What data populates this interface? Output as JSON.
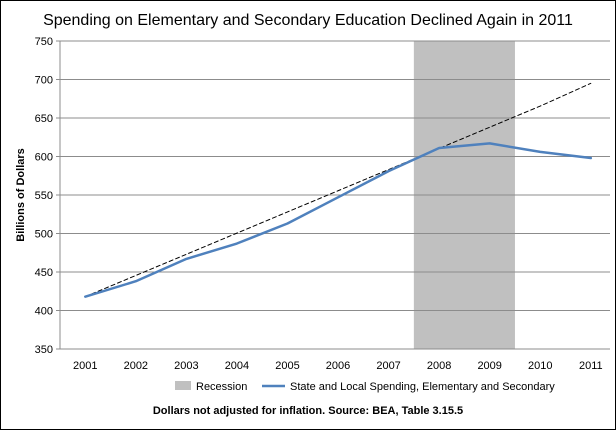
{
  "chart_data": {
    "type": "line",
    "title": "Spending on Elementary and Secondary Education Declined Again in 2011",
    "ylabel": "Billions of Dollars",
    "xlabel": "",
    "footnote": "Dollars not adjusted for inflation. Source: BEA, Table 3.15.5",
    "categories": [
      "2001",
      "2002",
      "2003",
      "2004",
      "2005",
      "2006",
      "2007",
      "2008",
      "2009",
      "2010",
      "2011"
    ],
    "ylim": [
      350,
      750
    ],
    "yticks": [
      350,
      400,
      450,
      500,
      550,
      600,
      650,
      700,
      750
    ],
    "grid": "horizontal",
    "legend_position": "bottom",
    "series": [
      {
        "name": "State and Local Spending, Elementary and Secondary",
        "values": [
          418,
          438,
          467,
          487,
          513,
          547,
          581,
          611,
          617,
          606,
          598
        ],
        "color": "#4f81bd",
        "style": "solid"
      },
      {
        "name": "",
        "values": [
          418,
          445.5,
          473,
          500.5,
          528,
          555.5,
          583,
          610.5,
          638,
          665.5,
          695
        ],
        "color": "#000000",
        "style": "dashed"
      }
    ],
    "shaded_regions": [
      {
        "label": "Recession",
        "from": 2007.5,
        "to": 2009.5,
        "color": "#c0c0c0"
      }
    ]
  }
}
